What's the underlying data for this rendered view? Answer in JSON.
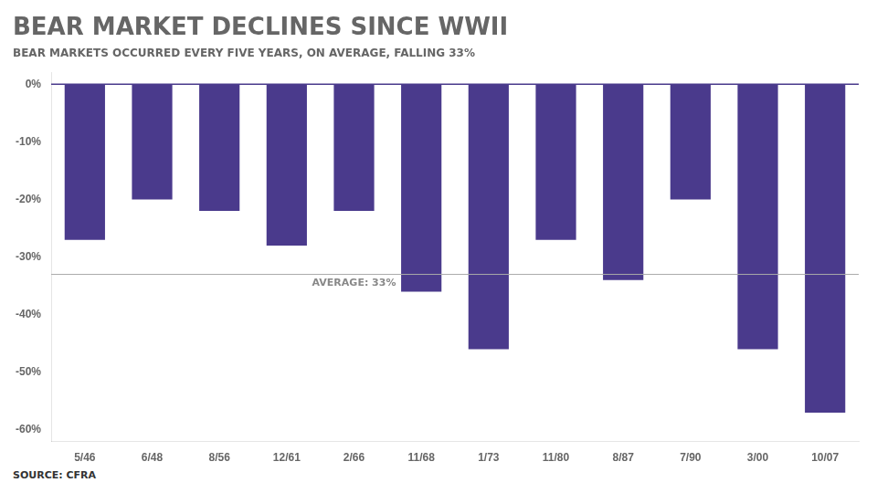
{
  "chart_data": {
    "type": "bar",
    "title": "BEAR MARKET DECLINES SINCE WWII",
    "subtitle": "BEAR MARKETS OCCURRED EVERY FIVE YEARS, ON AVERAGE, FALLING 33%",
    "source": "SOURCE: CFRA",
    "categories": [
      "5/46",
      "6/48",
      "8/56",
      "12/61",
      "2/66",
      "11/68",
      "1/73",
      "11/80",
      "8/87",
      "7/90",
      "3/00",
      "10/07"
    ],
    "values": [
      -27,
      -20,
      -22,
      -28,
      -22,
      -36,
      -46,
      -27,
      -34,
      -20,
      -46,
      -57
    ],
    "color": "#4a3a8c",
    "ylim": [
      -62,
      2
    ],
    "yticks": [
      {
        "value": 0,
        "label": "0%"
      },
      {
        "value": -10,
        "label": "-10%"
      },
      {
        "value": -20,
        "label": "-20%"
      },
      {
        "value": -30,
        "label": "-30%"
      },
      {
        "value": -40,
        "label": "-40%"
      },
      {
        "value": -50,
        "label": "-50%"
      },
      {
        "value": -60,
        "label": "-60%"
      }
    ],
    "annotations": [
      {
        "y": -33,
        "text": "AVERAGE: 33%",
        "color": "#888888"
      }
    ],
    "grid": false
  }
}
